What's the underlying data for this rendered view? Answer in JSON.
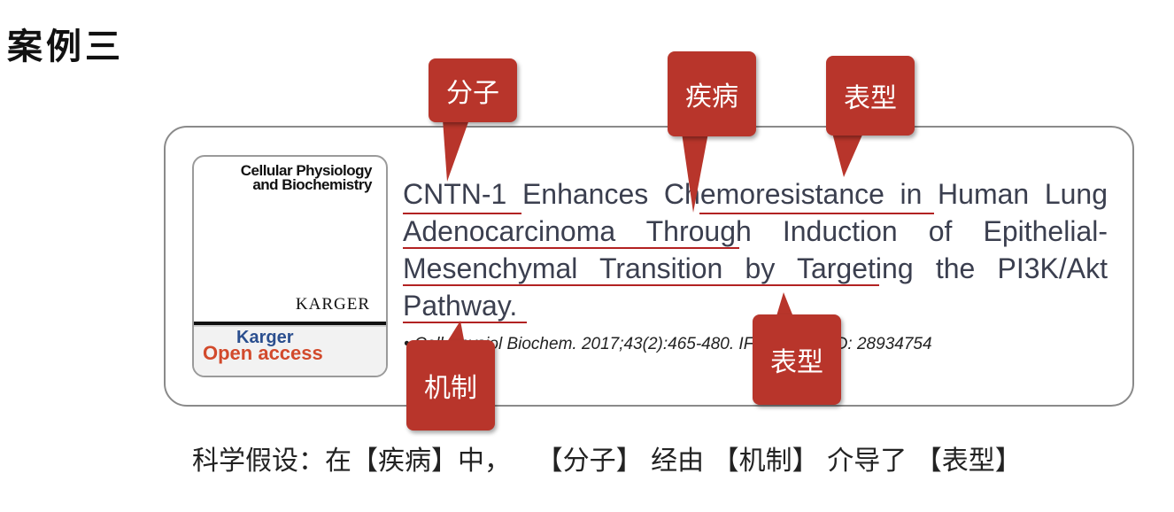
{
  "heading": "案例三",
  "cover": {
    "title_line1": "Cellular Physiology",
    "title_line2": "and Biochemistry",
    "publisher": "KARGER",
    "oa_line1": "Karger",
    "oa_line2": "Open access"
  },
  "paper": {
    "title_segments": [
      "CNTN-1",
      " Enhances ",
      "Chemoresistance",
      " in Human ",
      "Lung Adenocarcinoma",
      " Through Induction of ",
      "Epithelial-Mesenchymal Transition",
      " by Targeting the ",
      "PI3K/Akt",
      " Pathway."
    ],
    "citation": "• Cell Physiol Biochem. 2017;43(2):465-480. IF=5.10. PMID: 28934754"
  },
  "callouts": {
    "molecule": "分子",
    "disease": "疾病",
    "phenotype_top": "表型",
    "phenotype_bottom": "表型",
    "mechanism": "机制"
  },
  "hypothesis": "科学假设：在【疾病】中，   【分子】 经由 【机制】 介导了 【表型】",
  "colors": {
    "callout": "#b8352b",
    "underline": "#b22222",
    "title_text": "#3b3f4f"
  }
}
